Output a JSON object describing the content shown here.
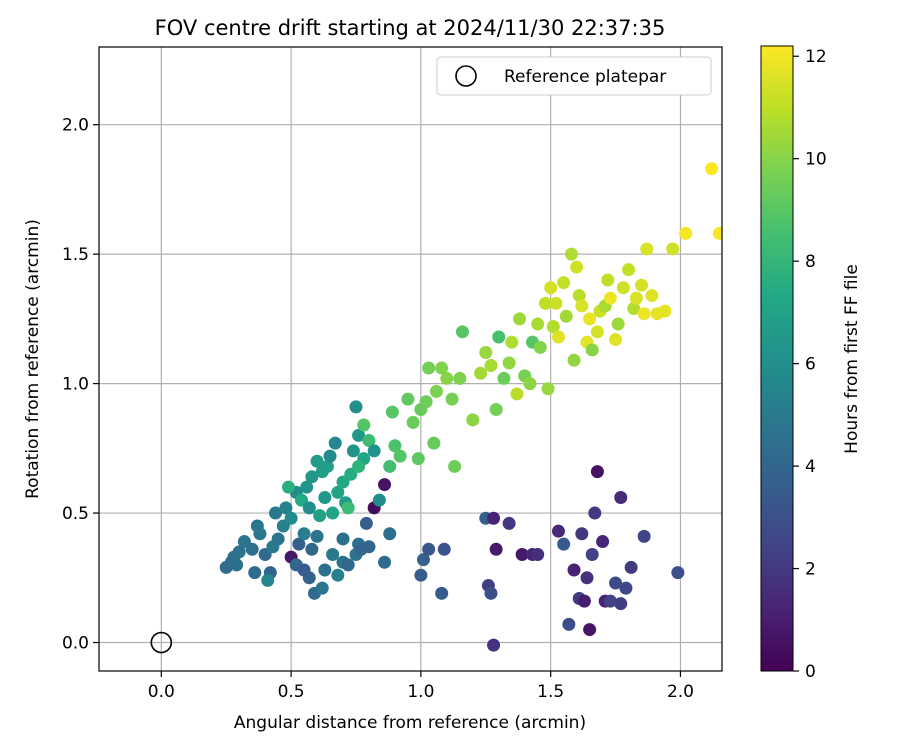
{
  "chart_data": {
    "type": "scatter",
    "title": "FOV centre drift starting at 2024/11/30 22:37:35",
    "xlabel": "Angular distance from reference (arcmin)",
    "ylabel": "Rotation from reference (arcmin)",
    "xlim": [
      -0.24,
      2.16
    ],
    "ylim": [
      -0.11,
      2.3
    ],
    "xticks": [
      "0.0",
      "0.5",
      "1.0",
      "1.5",
      "2.0"
    ],
    "xtick_values": [
      0.0,
      0.5,
      1.0,
      1.5,
      2.0
    ],
    "yticks": [
      "0.0",
      "0.5",
      "1.0",
      "1.5",
      "2.0"
    ],
    "ytick_values": [
      0.0,
      0.5,
      1.0,
      1.5,
      2.0
    ],
    "grid": true,
    "legend": {
      "position": "top-right",
      "entries": [
        "Reference platepar"
      ]
    },
    "reference_point": {
      "x": 0.0,
      "y": 0.0
    },
    "colorbar": {
      "label": "Hours from first FF file",
      "min": 0,
      "max": 12.2,
      "ticks": [
        "0",
        "2",
        "4",
        "6",
        "8",
        "10",
        "12"
      ],
      "tick_values": [
        0,
        2,
        4,
        6,
        8,
        10,
        12
      ],
      "colormap": "viridis"
    },
    "points": [
      {
        "x": 0.25,
        "y": 0.29,
        "h": 4.3
      },
      {
        "x": 0.27,
        "y": 0.31,
        "h": 4.4
      },
      {
        "x": 0.28,
        "y": 0.33,
        "h": 4.5
      },
      {
        "x": 0.3,
        "y": 0.35,
        "h": 4.6
      },
      {
        "x": 0.29,
        "y": 0.3,
        "h": 4.5
      },
      {
        "x": 0.32,
        "y": 0.39,
        "h": 4.7
      },
      {
        "x": 0.35,
        "y": 0.36,
        "h": 4.4
      },
      {
        "x": 0.37,
        "y": 0.45,
        "h": 4.8
      },
      {
        "x": 0.38,
        "y": 0.42,
        "h": 4.9
      },
      {
        "x": 0.4,
        "y": 0.34,
        "h": 4.2
      },
      {
        "x": 0.42,
        "y": 0.27,
        "h": 3.9
      },
      {
        "x": 0.41,
        "y": 0.24,
        "h": 5.6
      },
      {
        "x": 0.36,
        "y": 0.27,
        "h": 4.3
      },
      {
        "x": 0.43,
        "y": 0.37,
        "h": 5.0
      },
      {
        "x": 0.45,
        "y": 0.4,
        "h": 4.6
      },
      {
        "x": 0.44,
        "y": 0.5,
        "h": 4.9
      },
      {
        "x": 0.47,
        "y": 0.45,
        "h": 5.2
      },
      {
        "x": 0.48,
        "y": 0.52,
        "h": 5.4
      },
      {
        "x": 0.5,
        "y": 0.48,
        "h": 5.7
      },
      {
        "x": 0.52,
        "y": 0.58,
        "h": 5.8
      },
      {
        "x": 0.5,
        "y": 0.33,
        "h": 0.8
      },
      {
        "x": 0.52,
        "y": 0.3,
        "h": 4.1
      },
      {
        "x": 0.53,
        "y": 0.38,
        "h": 3.7
      },
      {
        "x": 0.55,
        "y": 0.42,
        "h": 5.1
      },
      {
        "x": 0.55,
        "y": 0.28,
        "h": 3.5
      },
      {
        "x": 0.57,
        "y": 0.25,
        "h": 3.8
      },
      {
        "x": 0.58,
        "y": 0.36,
        "h": 4.0
      },
      {
        "x": 0.6,
        "y": 0.41,
        "h": 4.6
      },
      {
        "x": 0.59,
        "y": 0.19,
        "h": 4.2
      },
      {
        "x": 0.62,
        "y": 0.21,
        "h": 4.8
      },
      {
        "x": 0.63,
        "y": 0.28,
        "h": 4.4
      },
      {
        "x": 0.66,
        "y": 0.34,
        "h": 4.9
      },
      {
        "x": 0.68,
        "y": 0.26,
        "h": 5.3
      },
      {
        "x": 0.7,
        "y": 0.31,
        "h": 4.7
      },
      {
        "x": 0.7,
        "y": 0.4,
        "h": 4.5
      },
      {
        "x": 0.72,
        "y": 0.3,
        "h": 4.1
      },
      {
        "x": 0.75,
        "y": 0.34,
        "h": 4.6
      },
      {
        "x": 0.76,
        "y": 0.38,
        "h": 4.3
      },
      {
        "x": 0.77,
        "y": 0.36,
        "h": 4.0
      },
      {
        "x": 0.8,
        "y": 0.37,
        "h": 3.9
      },
      {
        "x": 0.79,
        "y": 0.46,
        "h": 3.6
      },
      {
        "x": 0.82,
        "y": 0.52,
        "h": 0.4
      },
      {
        "x": 0.86,
        "y": 0.31,
        "h": 4.2
      },
      {
        "x": 0.88,
        "y": 0.42,
        "h": 4.4
      },
      {
        "x": 0.86,
        "y": 0.61,
        "h": 0.6
      },
      {
        "x": 0.56,
        "y": 0.6,
        "h": 6.3
      },
      {
        "x": 0.58,
        "y": 0.64,
        "h": 6.4
      },
      {
        "x": 0.6,
        "y": 0.7,
        "h": 6.6
      },
      {
        "x": 0.62,
        "y": 0.66,
        "h": 6.8
      },
      {
        "x": 0.64,
        "y": 0.68,
        "h": 6.9
      },
      {
        "x": 0.65,
        "y": 0.72,
        "h": 5.8
      },
      {
        "x": 0.67,
        "y": 0.77,
        "h": 5.6
      },
      {
        "x": 0.68,
        "y": 0.58,
        "h": 7.1
      },
      {
        "x": 0.7,
        "y": 0.62,
        "h": 7.3
      },
      {
        "x": 0.71,
        "y": 0.54,
        "h": 6.7
      },
      {
        "x": 0.73,
        "y": 0.65,
        "h": 7.5
      },
      {
        "x": 0.74,
        "y": 0.74,
        "h": 6.2
      },
      {
        "x": 0.75,
        "y": 0.91,
        "h": 6.0
      },
      {
        "x": 0.76,
        "y": 0.8,
        "h": 6.5
      },
      {
        "x": 0.78,
        "y": 0.84,
        "h": 8.9
      },
      {
        "x": 0.78,
        "y": 0.71,
        "h": 7.2
      },
      {
        "x": 0.8,
        "y": 0.78,
        "h": 8.4
      },
      {
        "x": 0.82,
        "y": 0.74,
        "h": 6.1
      },
      {
        "x": 0.84,
        "y": 0.55,
        "h": 5.9
      },
      {
        "x": 0.76,
        "y": 0.68,
        "h": 7.8
      },
      {
        "x": 0.72,
        "y": 0.52,
        "h": 8.3
      },
      {
        "x": 0.66,
        "y": 0.5,
        "h": 7.0
      },
      {
        "x": 0.63,
        "y": 0.56,
        "h": 6.4
      },
      {
        "x": 0.61,
        "y": 0.49,
        "h": 6.9
      },
      {
        "x": 0.54,
        "y": 0.55,
        "h": 7.4
      },
      {
        "x": 0.57,
        "y": 0.52,
        "h": 6.0
      },
      {
        "x": 0.49,
        "y": 0.6,
        "h": 7.6
      },
      {
        "x": 0.88,
        "y": 0.68,
        "h": 8.5
      },
      {
        "x": 0.9,
        "y": 0.76,
        "h": 8.7
      },
      {
        "x": 0.92,
        "y": 0.72,
        "h": 8.9
      },
      {
        "x": 0.89,
        "y": 0.89,
        "h": 9.0
      },
      {
        "x": 0.95,
        "y": 0.94,
        "h": 9.2
      },
      {
        "x": 0.97,
        "y": 0.85,
        "h": 9.4
      },
      {
        "x": 0.99,
        "y": 0.71,
        "h": 9.1
      },
      {
        "x": 1.0,
        "y": 0.9,
        "h": 9.3
      },
      {
        "x": 1.02,
        "y": 0.93,
        "h": 9.5
      },
      {
        "x": 1.03,
        "y": 1.06,
        "h": 9.6
      },
      {
        "x": 1.05,
        "y": 0.77,
        "h": 9.3
      },
      {
        "x": 1.06,
        "y": 0.97,
        "h": 9.8
      },
      {
        "x": 1.08,
        "y": 1.06,
        "h": 9.9
      },
      {
        "x": 1.1,
        "y": 1.02,
        "h": 10.0
      },
      {
        "x": 1.12,
        "y": 0.94,
        "h": 9.7
      },
      {
        "x": 1.13,
        "y": 0.68,
        "h": 9.5
      },
      {
        "x": 1.15,
        "y": 1.02,
        "h": 9.8
      },
      {
        "x": 1.16,
        "y": 1.2,
        "h": 9.0
      },
      {
        "x": 1.2,
        "y": 0.86,
        "h": 10.1
      },
      {
        "x": 1.23,
        "y": 1.04,
        "h": 10.5
      },
      {
        "x": 1.25,
        "y": 1.12,
        "h": 10.3
      },
      {
        "x": 1.27,
        "y": 1.07,
        "h": 10.6
      },
      {
        "x": 1.29,
        "y": 0.9,
        "h": 9.6
      },
      {
        "x": 1.3,
        "y": 1.18,
        "h": 8.6
      },
      {
        "x": 1.32,
        "y": 1.02,
        "h": 9.4
      },
      {
        "x": 1.34,
        "y": 1.08,
        "h": 10.2
      },
      {
        "x": 1.35,
        "y": 1.16,
        "h": 10.7
      },
      {
        "x": 1.37,
        "y": 0.96,
        "h": 10.9
      },
      {
        "x": 1.38,
        "y": 1.25,
        "h": 10.4
      },
      {
        "x": 1.4,
        "y": 1.03,
        "h": 9.7
      },
      {
        "x": 1.42,
        "y": 1.0,
        "h": 10.1
      },
      {
        "x": 1.43,
        "y": 1.16,
        "h": 8.9
      },
      {
        "x": 1.45,
        "y": 1.23,
        "h": 10.6
      },
      {
        "x": 1.46,
        "y": 1.14,
        "h": 9.9
      },
      {
        "x": 1.48,
        "y": 1.31,
        "h": 11.0
      },
      {
        "x": 1.49,
        "y": 0.98,
        "h": 10.3
      },
      {
        "x": 1.5,
        "y": 1.37,
        "h": 11.4
      },
      {
        "x": 1.51,
        "y": 1.22,
        "h": 10.8
      },
      {
        "x": 1.52,
        "y": 1.31,
        "h": 11.2
      },
      {
        "x": 1.53,
        "y": 1.18,
        "h": 11.6
      },
      {
        "x": 1.55,
        "y": 1.39,
        "h": 11.1
      },
      {
        "x": 1.56,
        "y": 1.26,
        "h": 10.5
      },
      {
        "x": 1.58,
        "y": 1.5,
        "h": 10.7
      },
      {
        "x": 1.59,
        "y": 1.09,
        "h": 10.2
      },
      {
        "x": 1.6,
        "y": 1.45,
        "h": 11.3
      },
      {
        "x": 1.61,
        "y": 1.34,
        "h": 10.9
      },
      {
        "x": 1.62,
        "y": 1.3,
        "h": 11.5
      },
      {
        "x": 1.64,
        "y": 1.16,
        "h": 11.7
      },
      {
        "x": 1.65,
        "y": 1.25,
        "h": 11.8
      },
      {
        "x": 1.66,
        "y": 1.13,
        "h": 10.0
      },
      {
        "x": 1.68,
        "y": 1.2,
        "h": 11.4
      },
      {
        "x": 1.69,
        "y": 1.28,
        "h": 11.2
      },
      {
        "x": 1.71,
        "y": 1.3,
        "h": 10.6
      },
      {
        "x": 1.72,
        "y": 1.4,
        "h": 11.0
      },
      {
        "x": 1.73,
        "y": 1.33,
        "h": 11.9
      },
      {
        "x": 1.75,
        "y": 1.17,
        "h": 11.6
      },
      {
        "x": 1.76,
        "y": 1.23,
        "h": 10.4
      },
      {
        "x": 1.78,
        "y": 1.37,
        "h": 11.3
      },
      {
        "x": 1.8,
        "y": 1.44,
        "h": 11.1
      },
      {
        "x": 1.82,
        "y": 1.29,
        "h": 10.8
      },
      {
        "x": 1.85,
        "y": 1.38,
        "h": 11.4
      },
      {
        "x": 1.87,
        "y": 1.52,
        "h": 11.5
      },
      {
        "x": 1.89,
        "y": 1.34,
        "h": 11.6
      },
      {
        "x": 1.91,
        "y": 1.27,
        "h": 11.8
      },
      {
        "x": 1.94,
        "y": 1.28,
        "h": 11.7
      },
      {
        "x": 1.97,
        "y": 1.52,
        "h": 11.3
      },
      {
        "x": 2.02,
        "y": 1.58,
        "h": 12.0
      },
      {
        "x": 2.12,
        "y": 1.83,
        "h": 12.2
      },
      {
        "x": 2.15,
        "y": 1.58,
        "h": 12.1
      },
      {
        "x": 1.86,
        "y": 1.27,
        "h": 11.9
      },
      {
        "x": 1.83,
        "y": 1.33,
        "h": 11.5
      },
      {
        "x": 1.25,
        "y": 0.48,
        "h": 3.8
      },
      {
        "x": 1.28,
        "y": 0.48,
        "h": 1.2
      },
      {
        "x": 1.29,
        "y": 0.36,
        "h": 0.9
      },
      {
        "x": 1.26,
        "y": 0.22,
        "h": 2.2
      },
      {
        "x": 1.27,
        "y": 0.19,
        "h": 3.0
      },
      {
        "x": 1.28,
        "y": -0.01,
        "h": 1.8
      },
      {
        "x": 1.34,
        "y": 0.46,
        "h": 2.0
      },
      {
        "x": 1.39,
        "y": 0.34,
        "h": 0.8
      },
      {
        "x": 1.43,
        "y": 0.34,
        "h": 1.3
      },
      {
        "x": 1.45,
        "y": 0.34,
        "h": 1.6
      },
      {
        "x": 1.53,
        "y": 0.43,
        "h": 1.4
      },
      {
        "x": 1.55,
        "y": 0.38,
        "h": 3.4
      },
      {
        "x": 1.57,
        "y": 0.07,
        "h": 2.9
      },
      {
        "x": 1.59,
        "y": 0.28,
        "h": 1.2
      },
      {
        "x": 1.61,
        "y": 0.17,
        "h": 2.1
      },
      {
        "x": 1.62,
        "y": 0.42,
        "h": 1.9
      },
      {
        "x": 1.63,
        "y": 0.16,
        "h": 1.0
      },
      {
        "x": 1.64,
        "y": 0.25,
        "h": 1.7
      },
      {
        "x": 1.65,
        "y": 0.05,
        "h": 0.7
      },
      {
        "x": 1.66,
        "y": 0.34,
        "h": 2.4
      },
      {
        "x": 1.67,
        "y": 0.5,
        "h": 2.0
      },
      {
        "x": 1.68,
        "y": 0.66,
        "h": 0.6
      },
      {
        "x": 1.7,
        "y": 0.39,
        "h": 1.3
      },
      {
        "x": 1.71,
        "y": 0.16,
        "h": 1.1
      },
      {
        "x": 1.73,
        "y": 0.16,
        "h": 2.4
      },
      {
        "x": 1.75,
        "y": 0.23,
        "h": 2.8
      },
      {
        "x": 1.77,
        "y": 0.56,
        "h": 1.5
      },
      {
        "x": 1.77,
        "y": 0.15,
        "h": 2.2
      },
      {
        "x": 1.79,
        "y": 0.21,
        "h": 2.6
      },
      {
        "x": 1.81,
        "y": 0.29,
        "h": 2.1
      },
      {
        "x": 1.86,
        "y": 0.41,
        "h": 2.5
      },
      {
        "x": 1.99,
        "y": 0.27,
        "h": 3.0
      },
      {
        "x": 1.0,
        "y": 0.26,
        "h": 3.6
      },
      {
        "x": 1.01,
        "y": 0.32,
        "h": 3.8
      },
      {
        "x": 1.03,
        "y": 0.36,
        "h": 3.3
      },
      {
        "x": 1.08,
        "y": 0.19,
        "h": 3.5
      },
      {
        "x": 1.09,
        "y": 0.36,
        "h": 3.1
      }
    ]
  }
}
